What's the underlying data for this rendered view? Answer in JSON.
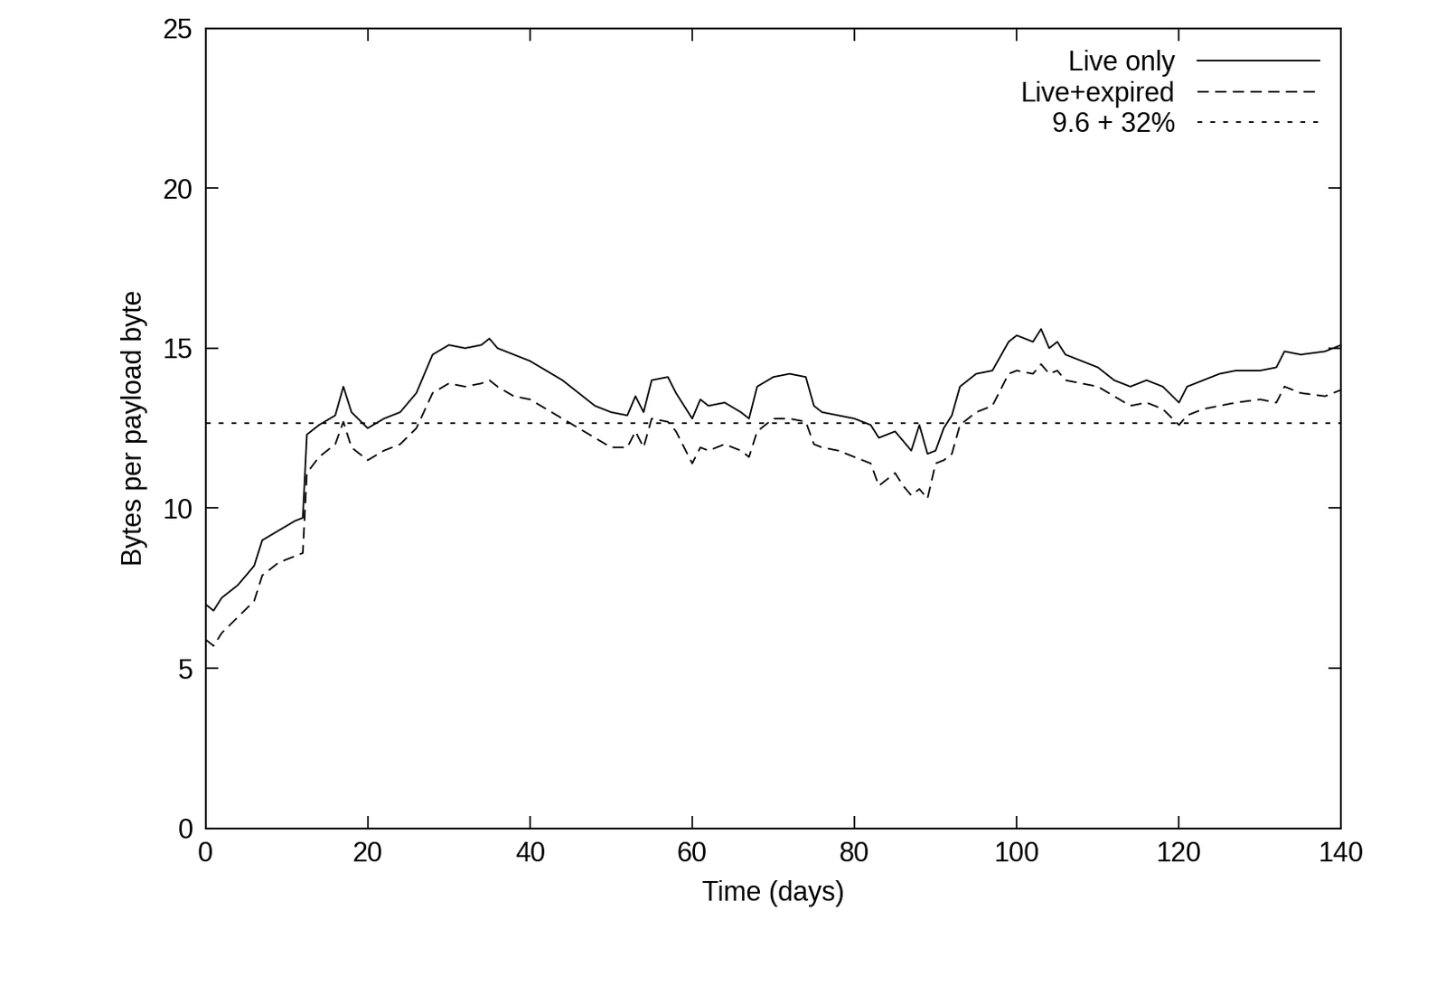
{
  "chart_data": {
    "type": "line",
    "x_label": "Time (days)",
    "y_label": "Bytes per payload byte",
    "xlim": [
      0,
      140
    ],
    "ylim": [
      0,
      25
    ],
    "xticks": [
      0,
      20,
      40,
      60,
      80,
      100,
      120,
      140
    ],
    "yticks": [
      0,
      5,
      10,
      15,
      20,
      25
    ],
    "grid": false,
    "legend": "upper right",
    "x": [
      0,
      1,
      2,
      4,
      6,
      7,
      9,
      11,
      12,
      12.5,
      14,
      16,
      17,
      18,
      20,
      22,
      24,
      26,
      28,
      30,
      32,
      34,
      35,
      36,
      38,
      40,
      42,
      44,
      46,
      48,
      50,
      52,
      53,
      54,
      55,
      57,
      58,
      60,
      61,
      62,
      64,
      66,
      67,
      68,
      70,
      72,
      74,
      75,
      76,
      78,
      80,
      82,
      83,
      84,
      85,
      86,
      87,
      88,
      89,
      90,
      91,
      92,
      93,
      95,
      97,
      99,
      100,
      102,
      103,
      104,
      105,
      106,
      108,
      110,
      112,
      114,
      116,
      118,
      120,
      121,
      123,
      125,
      127,
      130,
      132,
      133,
      135,
      138,
      140
    ],
    "series": [
      {
        "name": "Live only",
        "color": "#000000",
        "line_style": "solid",
        "values": [
          7.0,
          6.8,
          7.2,
          7.6,
          8.2,
          9.0,
          9.3,
          9.6,
          9.7,
          12.3,
          12.6,
          12.9,
          13.8,
          13.0,
          12.5,
          12.8,
          13.0,
          13.6,
          14.8,
          15.1,
          15.0,
          15.1,
          15.3,
          15.0,
          14.8,
          14.6,
          14.3,
          14.0,
          13.6,
          13.2,
          13.0,
          12.9,
          13.5,
          13.0,
          14.0,
          14.1,
          13.6,
          12.8,
          13.4,
          13.2,
          13.3,
          13.0,
          12.8,
          13.8,
          14.1,
          14.2,
          14.1,
          13.2,
          13.0,
          12.9,
          12.8,
          12.6,
          12.2,
          12.3,
          12.4,
          12.1,
          11.8,
          12.6,
          11.7,
          11.8,
          12.5,
          12.9,
          13.8,
          14.2,
          14.3,
          15.2,
          15.4,
          15.2,
          15.6,
          15.0,
          15.2,
          14.8,
          14.6,
          14.4,
          14.0,
          13.8,
          14.0,
          13.8,
          13.3,
          13.8,
          14.0,
          14.2,
          14.3,
          14.3,
          14.4,
          14.9,
          14.8,
          14.9,
          15.1
        ]
      },
      {
        "name": "Live+expired",
        "color": "#000000",
        "line_style": "dashed",
        "values": [
          5.9,
          5.7,
          6.1,
          6.6,
          7.1,
          7.9,
          8.3,
          8.5,
          8.6,
          11.1,
          11.6,
          12.0,
          12.7,
          11.9,
          11.5,
          11.8,
          12.0,
          12.5,
          13.6,
          13.9,
          13.8,
          13.9,
          14.0,
          13.8,
          13.5,
          13.4,
          13.1,
          12.8,
          12.5,
          12.2,
          11.9,
          11.9,
          12.4,
          11.9,
          12.8,
          12.7,
          12.4,
          11.4,
          11.9,
          11.8,
          12.0,
          11.8,
          11.6,
          12.4,
          12.8,
          12.8,
          12.7,
          12.0,
          11.9,
          11.8,
          11.6,
          11.4,
          10.7,
          10.9,
          11.1,
          10.7,
          10.4,
          10.6,
          10.3,
          11.4,
          11.5,
          11.7,
          12.6,
          13.0,
          13.2,
          14.2,
          14.3,
          14.2,
          14.5,
          14.2,
          14.3,
          14.0,
          13.9,
          13.8,
          13.5,
          13.2,
          13.3,
          13.1,
          12.6,
          12.9,
          13.1,
          13.2,
          13.3,
          13.4,
          13.3,
          13.8,
          13.6,
          13.5,
          13.7
        ]
      },
      {
        "name": "9.6 + 32%",
        "color": "#000000",
        "line_style": "dotted",
        "x": [
          0,
          140
        ],
        "values": [
          12.67,
          12.67
        ]
      }
    ]
  }
}
